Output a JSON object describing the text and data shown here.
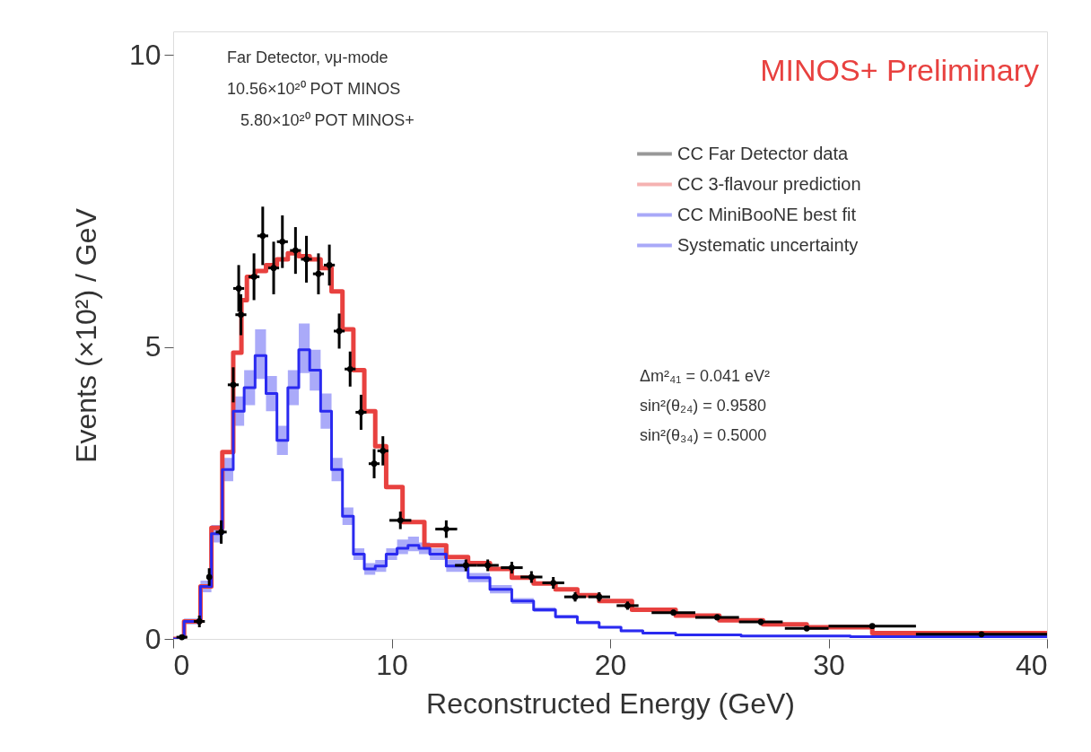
{
  "chart_data": {
    "type": "step",
    "xlabel": "Reconstructed Energy (GeV)",
    "ylabel": "Events (×10²) / GeV",
    "xlim": [
      0,
      40
    ],
    "xticks": [
      0,
      10,
      20,
      30,
      40
    ],
    "ylim": [
      0,
      10.4
    ],
    "yticks": [
      {
        "value": 0,
        "label": "0"
      },
      {
        "value": 5,
        "label": "5"
      },
      {
        "value": 10,
        "label": "10"
      }
    ],
    "grid": false,
    "legend": "top right",
    "annotations": [
      "Far Detector, νμ-mode",
      "10.56×10²⁰ POT MINOS",
      "5.80×10²⁰ POT MINOS+",
      "MINOS+ Preliminary",
      "Δm²₄₁ = 0.041 eV²",
      "sin²(θ₂₄) = 0.9580",
      "sin²(θ₃₄) = 0.5000",
      "Systematic uncertainty"
    ],
    "series": [
      {
        "type": "scatter",
        "name": "CC Far Detector data",
        "color": "#000000",
        "marker": "circle",
        "x": [
          0.4,
          1.2,
          1.65,
          2.2,
          2.75,
          3.0,
          3.1,
          3.7,
          4.1,
          4.6,
          5.0,
          5.6,
          6.1,
          6.65,
          7.15,
          7.6,
          8.1,
          8.6,
          9.2,
          9.6,
          10.4,
          12.5,
          13.4,
          14.4,
          15.5,
          16.4,
          17.4,
          18.4,
          19.5,
          20.8,
          22.9,
          24.9,
          26.9,
          29.0,
          32.0,
          37.0
        ],
        "values": [
          0.03,
          0.3,
          1.06,
          1.83,
          4.35,
          6.0,
          5.55,
          6.2,
          6.9,
          6.35,
          6.8,
          6.65,
          6.5,
          6.25,
          6.4,
          5.27,
          4.62,
          3.88,
          3.0,
          3.22,
          2.03,
          1.88,
          1.26,
          1.26,
          1.22,
          1.06,
          0.96,
          0.72,
          0.72,
          0.57,
          0.45,
          0.37,
          0.29,
          0.18,
          0.22,
          0.08
        ],
        "errors": [
          null,
          0.1,
          0.15,
          0.2,
          0.3,
          0.4,
          0.35,
          0.4,
          0.5,
          0.45,
          0.45,
          0.4,
          0.4,
          0.35,
          0.35,
          0.3,
          0.3,
          0.3,
          0.25,
          0.25,
          0.15,
          0.15,
          0.1,
          0.1,
          0.1,
          0.1,
          0.1,
          0.08,
          0.08,
          0.07,
          0.05,
          0.05,
          0.05,
          0.04,
          0.03,
          0.02
        ],
        "xerrors": [
          0.25,
          0.25,
          null,
          0.25,
          0.25,
          0.25,
          0.25,
          0.25,
          0.25,
          0.25,
          0.25,
          0.25,
          0.25,
          0.25,
          0.25,
          0.25,
          0.25,
          0.25,
          0.25,
          0.25,
          0.5,
          0.5,
          0.5,
          0.5,
          0.5,
          0.5,
          0.5,
          0.5,
          0.5,
          0.5,
          1,
          1,
          1,
          1,
          2,
          3
        ]
      },
      {
        "name": "CC 3-flavour prediction",
        "color": "#e8413f",
        "line_style": "solid",
        "x": [
          0,
          1,
          1.5,
          2,
          2.5,
          3,
          3.25,
          3.5,
          4,
          4.5,
          5,
          5.5,
          6,
          6.5,
          7,
          7.5,
          8,
          8.5,
          9,
          9.5,
          10,
          11,
          12,
          13,
          14,
          15,
          16,
          17,
          18,
          19,
          20,
          22,
          24,
          26,
          28,
          30,
          34,
          40
        ],
        "values": [
          0,
          0.3,
          0.9,
          1.9,
          3.2,
          4.9,
          5.8,
          6.2,
          6.3,
          6.4,
          6.5,
          6.6,
          6.55,
          6.5,
          6.35,
          5.95,
          5.3,
          4.6,
          3.9,
          3.3,
          2.6,
          2.0,
          1.6,
          1.4,
          1.3,
          1.2,
          1.05,
          0.95,
          0.85,
          0.75,
          0.65,
          0.5,
          0.4,
          0.32,
          0.25,
          0.2,
          0.1,
          0.1
        ]
      },
      {
        "name": "CC MiniBooNE best fit",
        "color": "#2a2af0",
        "line_style": "solid",
        "x": [
          0,
          1,
          1.5,
          2,
          2.5,
          3,
          3.5,
          4,
          4.5,
          5,
          5.5,
          6,
          6.5,
          7,
          7.5,
          8,
          8.5,
          9,
          9.5,
          10,
          10.5,
          11,
          11.5,
          12,
          13,
          14,
          15,
          16,
          17,
          18,
          19,
          20,
          21,
          22,
          24,
          28,
          34,
          40
        ],
        "values": [
          0,
          0.3,
          0.9,
          1.8,
          2.9,
          3.9,
          4.3,
          4.85,
          4.2,
          3.4,
          4.3,
          4.95,
          4.6,
          3.9,
          2.9,
          2.1,
          1.45,
          1.2,
          1.25,
          1.45,
          1.55,
          1.6,
          1.55,
          1.45,
          1.25,
          1.05,
          0.85,
          0.65,
          0.5,
          0.38,
          0.28,
          0.2,
          0.14,
          0.1,
          0.07,
          0.05,
          0.04,
          0.04
        ],
        "lower": [
          0,
          0.25,
          0.8,
          1.65,
          2.7,
          3.65,
          4.0,
          4.45,
          3.9,
          3.15,
          4.0,
          4.55,
          4.25,
          3.6,
          2.7,
          1.95,
          1.35,
          1.1,
          1.15,
          1.35,
          1.45,
          1.5,
          1.45,
          1.35,
          1.15,
          0.97,
          0.78,
          0.6,
          0.46,
          0.35,
          0.25,
          0.18,
          0.12,
          0.08,
          0.05,
          0.03,
          0.02,
          0.02
        ],
        "upper": [
          0,
          0.35,
          1.0,
          1.95,
          3.1,
          4.15,
          4.6,
          5.3,
          4.5,
          3.65,
          4.6,
          5.4,
          4.95,
          4.2,
          3.1,
          2.25,
          1.55,
          1.3,
          1.35,
          1.55,
          1.7,
          1.75,
          1.65,
          1.55,
          1.35,
          1.13,
          0.92,
          0.7,
          0.54,
          0.41,
          0.31,
          0.22,
          0.16,
          0.12,
          0.09,
          0.07,
          0.06,
          0.06
        ]
      }
    ]
  }
}
